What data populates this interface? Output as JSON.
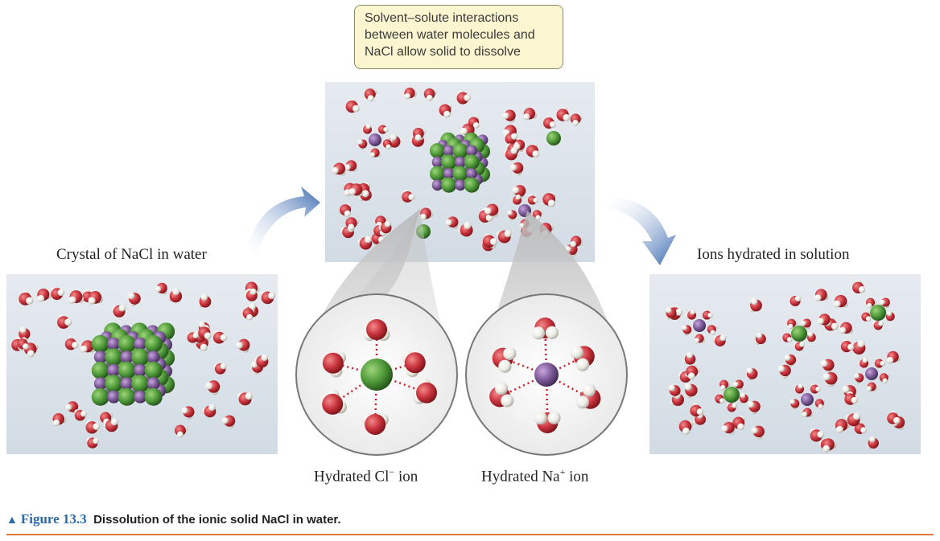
{
  "callout": {
    "lines": [
      "Solvent–solute interactions",
      "between water molecules and",
      "NaCl allow solid to dissolve"
    ]
  },
  "labels": {
    "left_panel": "Crystal of NaCl in water",
    "right_panel": "Ions hydrated in solution",
    "cl_ion_prefix": "Hydrated Cl",
    "cl_ion_sup": "−",
    "cl_ion_suffix": " ion",
    "na_ion_prefix": "Hydrated Na",
    "na_ion_sup": "+",
    "na_ion_suffix": " ion"
  },
  "caption": {
    "figure": "Figure 13.3",
    "text": "Dissolution of the ionic solid NaCl in water."
  },
  "colors": {
    "oxygen": "#c8323c",
    "hydrogen": "#f2f2ee",
    "chloride": "#4f9a3a",
    "sodium": "#7d5a98",
    "arrow": "#3a6ab0",
    "rule": "#e07a40",
    "figure_label": "#2a6aa8",
    "callout_bg": "#fbf6d0"
  }
}
